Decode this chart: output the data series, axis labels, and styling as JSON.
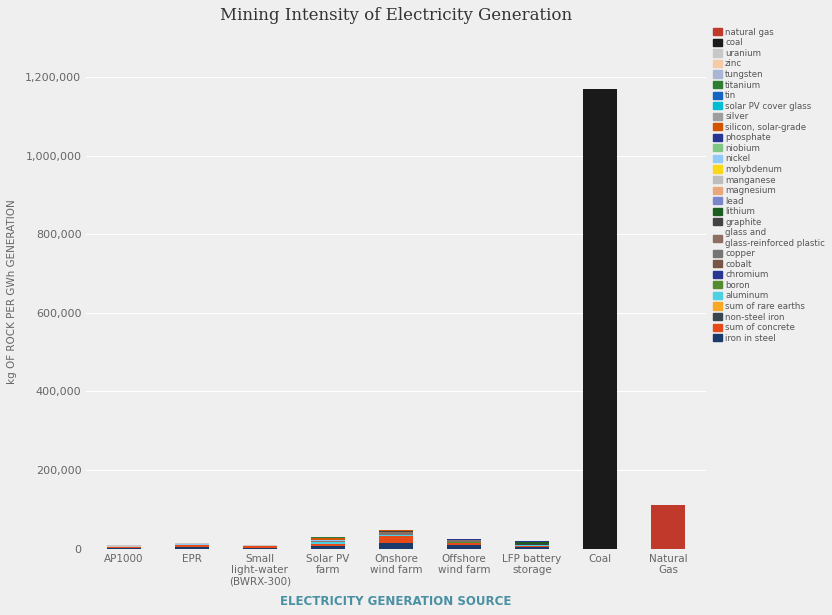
{
  "title": "Mining Intensity of Electricity Generation",
  "xlabel": "ELECTRICITY GENERATION SOURCE",
  "ylabel": "kg OF ROCK PER GWh GENERATION",
  "categories": [
    "AP1000",
    "EPR",
    "Small\nlight-water\n(BWRX-300)",
    "Solar PV\nfarm",
    "Onshore\nwind farm",
    "Offshore\nwind farm",
    "LFP battery\nstorage",
    "Coal",
    "Natural\nGas"
  ],
  "ylim": [
    0,
    1310000
  ],
  "yticks": [
    0,
    200000,
    400000,
    600000,
    800000,
    1000000,
    1200000
  ],
  "ytick_labels": [
    "0",
    "200,000",
    "400,000",
    "600,000",
    "800,000",
    "1,000,000",
    "1,200,000"
  ],
  "background_color": "#efefef",
  "grid_color": "#ffffff",
  "materials_ordered": [
    "natural gas",
    "coal",
    "uranium",
    "zinc",
    "tungsten",
    "titanium",
    "tin",
    "solar PV cover glass",
    "silver",
    "silicon, solar-grade",
    "phosphate",
    "niobium",
    "nickel",
    "molybdenum",
    "manganese",
    "magnesium",
    "lead",
    "lithium",
    "graphite",
    "glass and\nglass-reinforced plastic",
    "copper",
    "cobalt",
    "chromium",
    "boron",
    "aluminum",
    "sum of rare earths",
    "non-steel iron",
    "sum of concrete",
    "iron in steel"
  ],
  "material_colors": {
    "natural gas": "#c0392b",
    "coal": "#1a1a1a",
    "uranium": "#c8c8c8",
    "zinc": "#f5cba7",
    "tungsten": "#aab7d4",
    "titanium": "#2e7d32",
    "tin": "#1565c0",
    "solar PV cover glass": "#00bcd4",
    "silver": "#9e9e9e",
    "silicon, solar-grade": "#d35400",
    "phosphate": "#283593",
    "niobium": "#81c784",
    "nickel": "#90caf9",
    "molybdenum": "#f9d81a",
    "manganese": "#bdbdbd",
    "magnesium": "#e8a87c",
    "lead": "#7986cb",
    "lithium": "#1b5e20",
    "graphite": "#424242",
    "glass and\nglass-reinforced plastic": "#8d6e63",
    "copper": "#757575",
    "cobalt": "#795548",
    "chromium": "#283593",
    "boron": "#558b2f",
    "aluminum": "#4dd0e1",
    "sum of rare earths": "#f9a825",
    "non-steel iron": "#37474f",
    "sum of concrete": "#e64a19",
    "iron in steel": "#1a3a6b"
  },
  "stacking_order": [
    "iron in steel",
    "sum of concrete",
    "non-steel iron",
    "sum of rare earths",
    "aluminum",
    "boron",
    "chromium",
    "cobalt",
    "copper",
    "glass and\nglass-reinforced plastic",
    "graphite",
    "lithium",
    "lead",
    "magnesium",
    "manganese",
    "molybdenum",
    "nickel",
    "niobium",
    "phosphate",
    "silicon, solar-grade",
    "silver",
    "solar PV cover glass",
    "tin",
    "titanium",
    "tungsten",
    "zinc",
    "uranium",
    "coal",
    "natural gas"
  ],
  "data": {
    "AP1000": {
      "uranium": 3500,
      "sum of concrete": 2500,
      "iron in steel": 2000,
      "copper": 400,
      "nickel": 200,
      "chromium": 150,
      "lead": 80,
      "manganese": 80,
      "molybdenum": 40,
      "zinc": 40
    },
    "EPR": {
      "uranium": 4000,
      "sum of concrete": 5000,
      "iron in steel": 4000,
      "copper": 700,
      "nickel": 400,
      "chromium": 250,
      "lead": 120,
      "manganese": 120,
      "molybdenum": 70,
      "zinc": 70
    },
    "Small\nlight-water\n(BWRX-300)": {
      "uranium": 3000,
      "sum of concrete": 3000,
      "iron in steel": 2500,
      "copper": 500,
      "nickel": 300,
      "chromium": 200,
      "lead": 100,
      "manganese": 100,
      "molybdenum": 50,
      "zinc": 50
    },
    "Solar PV\nfarm": {
      "silicon, solar-grade": 5000,
      "solar PV cover glass": 1500,
      "aluminum": 4000,
      "iron in steel": 8000,
      "sum of concrete": 4000,
      "copper": 1500,
      "silver": 400,
      "tin": 250,
      "lead": 150,
      "zinc": 400,
      "manganese": 600,
      "nickel": 300,
      "molybdenum": 150,
      "titanium": 250,
      "glass and\nglass-reinforced plastic": 1500,
      "graphite": 80,
      "cobalt": 80,
      "chromium": 150,
      "boron": 80,
      "lithium": 80,
      "phosphate": 80,
      "niobium": 40,
      "tungsten": 40,
      "sum of rare earths": 150,
      "non-steel iron": 80,
      "magnesium": 80
    },
    "Onshore\nwind farm": {
      "iron in steel": 14000,
      "sum of concrete": 18000,
      "glass and\nglass-reinforced plastic": 6000,
      "copper": 2500,
      "aluminum": 1500,
      "zinc": 2000,
      "manganese": 700,
      "nickel": 600,
      "chromium": 400,
      "molybdenum": 250,
      "silicon, solar-grade": 400,
      "lead": 120,
      "titanium": 250,
      "boron": 250,
      "cobalt": 120,
      "lithium": 120,
      "niobium": 120,
      "tungsten": 60,
      "sum of rare earths": 600,
      "non-steel iron": 250,
      "magnesium": 120,
      "phosphate": 120,
      "tin": 60,
      "silver": 60,
      "solar PV cover glass": 60,
      "graphite": 60
    },
    "Offshore\nwind farm": {
      "iron in steel": 9000,
      "sum of concrete": 5000,
      "glass and\nglass-reinforced plastic": 3500,
      "copper": 2200,
      "aluminum": 900,
      "zinc": 1200,
      "manganese": 450,
      "nickel": 450,
      "chromium": 280,
      "molybdenum": 170,
      "lead": 110,
      "titanium": 170,
      "boron": 170,
      "cobalt": 90,
      "lithium": 90,
      "niobium": 90,
      "tungsten": 45,
      "sum of rare earths": 450,
      "non-steel iron": 170,
      "magnesium": 90,
      "phosphate": 90,
      "tin": 45,
      "silver": 45,
      "graphite": 45
    },
    "LFP battery\nstorage": {
      "iron in steel": 5000,
      "sum of concrete": 1000,
      "aluminum": 2000,
      "copper": 1500,
      "lithium": 3500,
      "phosphate": 1800,
      "graphite": 2500,
      "manganese": 350,
      "nickel": 250,
      "chromium": 250,
      "cobalt": 120,
      "boron": 120,
      "zinc": 250,
      "lead": 120,
      "titanium": 120,
      "molybdenum": 120,
      "non-steel iron": 250,
      "sum of rare earths": 250,
      "tungsten": 60,
      "niobium": 60,
      "tin": 60,
      "silver": 60,
      "magnesium": 120
    },
    "Coal": {
      "coal": 1170000
    },
    "Natural\nGas": {
      "natural gas": 110000
    }
  }
}
